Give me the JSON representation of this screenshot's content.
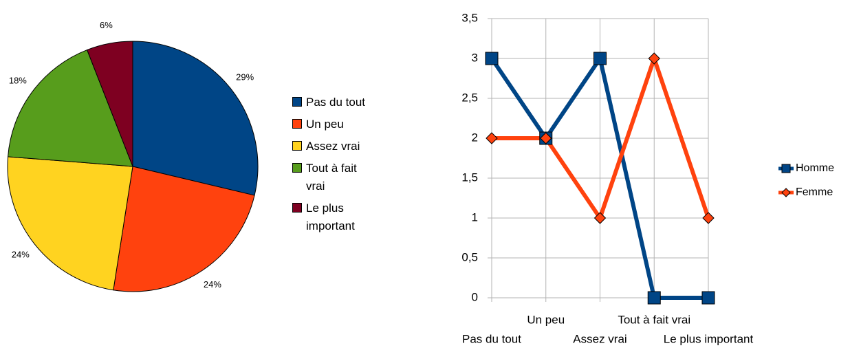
{
  "chart_data": [
    {
      "type": "pie",
      "categories": [
        "Pas du tout",
        "Un peu",
        "Assez vrai",
        "Tout à fait vrai",
        "Le plus important"
      ],
      "values": [
        29,
        24,
        24,
        18,
        6
      ],
      "value_labels": [
        "29%",
        "24%",
        "24%",
        "18%",
        "6%"
      ],
      "colors": [
        "#004586",
        "#ff420e",
        "#ffd320",
        "#579d1c",
        "#7e0021"
      ],
      "legend": "right"
    },
    {
      "type": "line",
      "categories": [
        "Pas du tout",
        "Un peu",
        "Assez vrai",
        "Tout à fait vrai",
        "Le plus important"
      ],
      "series": [
        {
          "name": "Homme",
          "color": "#004586",
          "marker": "square",
          "values": [
            3,
            2,
            3,
            0,
            0
          ]
        },
        {
          "name": "Femme",
          "color": "#ff420e",
          "marker": "diamond",
          "values": [
            2,
            2,
            1,
            3,
            1
          ]
        }
      ],
      "ylim": [
        0,
        3.5
      ],
      "yticks": [
        0,
        {
          "value": 0.5,
          "label": "0,5"
        },
        1,
        {
          "value": 1.5,
          "label": "1,5"
        },
        2,
        {
          "value": 2.5,
          "label": "2,5"
        },
        3,
        {
          "value": 3.5,
          "label": "3,5"
        }
      ],
      "grid": true,
      "legend": "right"
    }
  ]
}
